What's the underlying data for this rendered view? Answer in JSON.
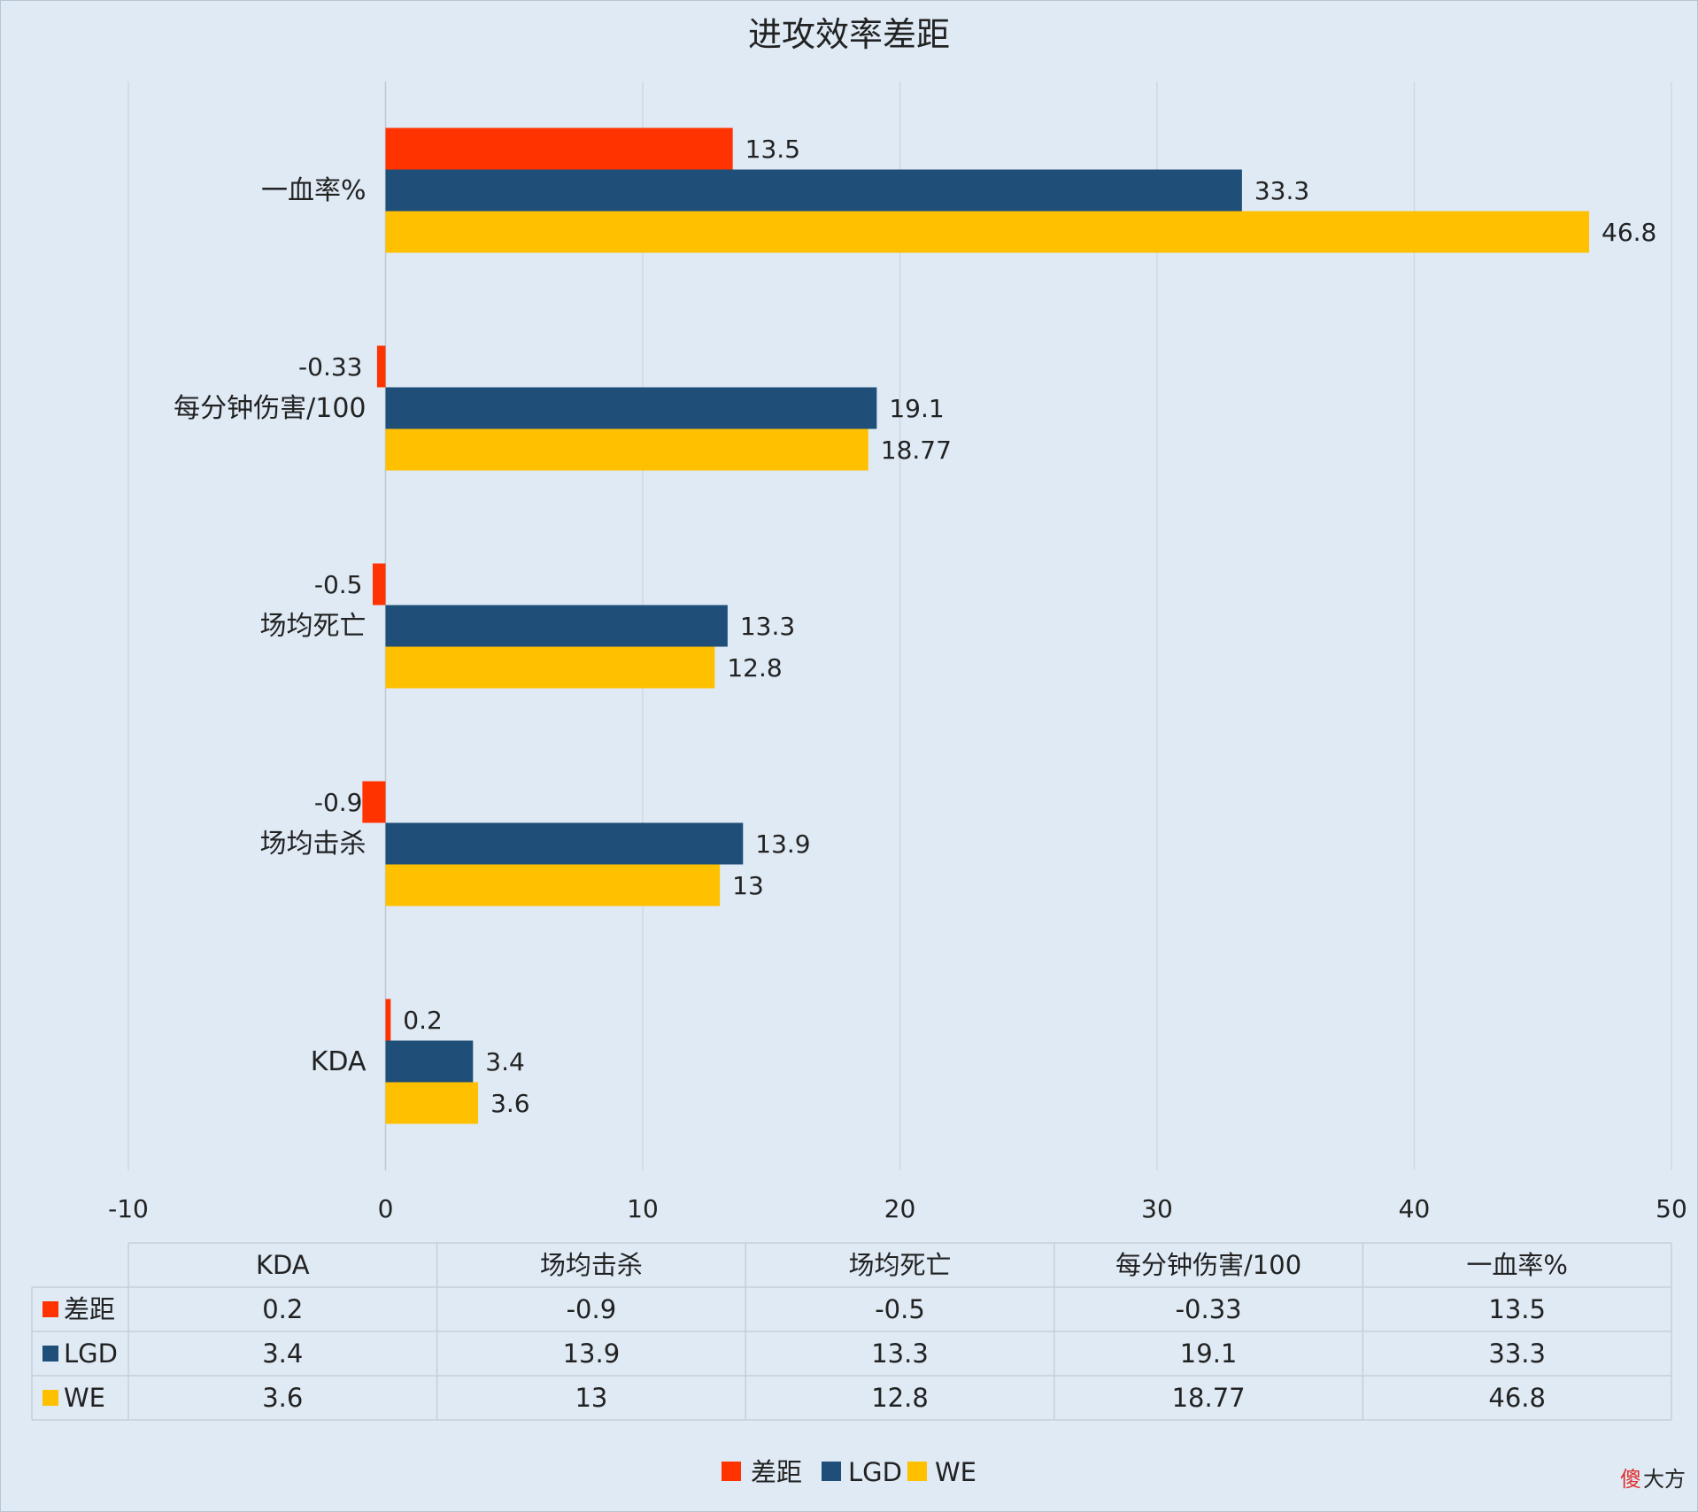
{
  "chart_data": {
    "type": "bar",
    "orientation": "horizontal",
    "title": "进攻效率差距",
    "categories": [
      "KDA",
      "场均击杀",
      "场均死亡",
      "每分钟伤害/100",
      "一血率%"
    ],
    "series": [
      {
        "name": "差距",
        "color": "#ff3300",
        "values": [
          0.2,
          -0.9,
          -0.5,
          -0.33,
          13.5
        ],
        "labels": [
          "0.2",
          "-0.9",
          "-0.5",
          "-0.33",
          "13.5"
        ]
      },
      {
        "name": "LGD",
        "color": "#1f4e79",
        "values": [
          3.4,
          13.9,
          13.3,
          19.1,
          33.3
        ],
        "labels": [
          "3.4",
          "13.9",
          "13.3",
          "19.1",
          "33.3"
        ]
      },
      {
        "name": "WE",
        "color": "#ffc000",
        "values": [
          3.6,
          13,
          12.8,
          18.77,
          46.8
        ],
        "labels": [
          "3.6",
          "13",
          "12.8",
          "18.77",
          "46.8"
        ]
      }
    ],
    "xlim": [
      -10,
      50
    ],
    "xticks": [
      "-10",
      "0",
      "10",
      "20",
      "30",
      "40",
      "50"
    ],
    "grid": "vertical",
    "data_table": true,
    "legend_position": "bottom"
  },
  "watermark": {
    "first": "傻",
    "rest": "大方",
    "first_color": "#e03030",
    "rest_color": "#222222"
  }
}
